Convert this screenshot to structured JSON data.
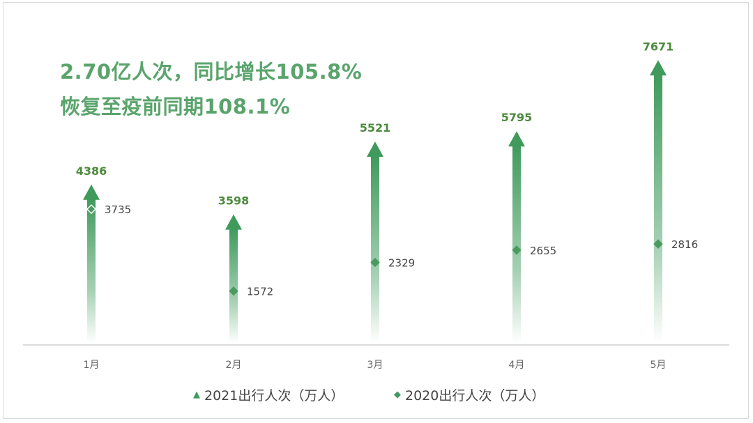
{
  "headline": {
    "line1": "2.70亿人次，同比增长105.8%",
    "line2": "恢复至疫前同期108.1%"
  },
  "colors": {
    "accent": "#5aa46c",
    "arrow": "#3f9a5c",
    "axis": "#cfcfcf",
    "label_2021": "#4c8a3c",
    "label_2020": "#444444"
  },
  "legend": {
    "series_2021": "2021出行人次（万人）",
    "series_2020": "2020出行人次（万人）"
  },
  "chart_data": {
    "type": "scatter",
    "categories": [
      "1月",
      "2月",
      "3月",
      "4月",
      "5月"
    ],
    "series": [
      {
        "name": "2021出行人次（万人）",
        "marker": "arrow-up",
        "values": [
          4386,
          3598,
          5521,
          5795,
          7671
        ]
      },
      {
        "name": "2020出行人次（万人）",
        "marker": "diamond",
        "values": [
          3735,
          1572,
          2329,
          2655,
          2816
        ]
      }
    ],
    "xlabel": "",
    "ylabel": "",
    "ylim": [
      0,
      8000
    ],
    "grid": false,
    "legend_position": "bottom"
  }
}
